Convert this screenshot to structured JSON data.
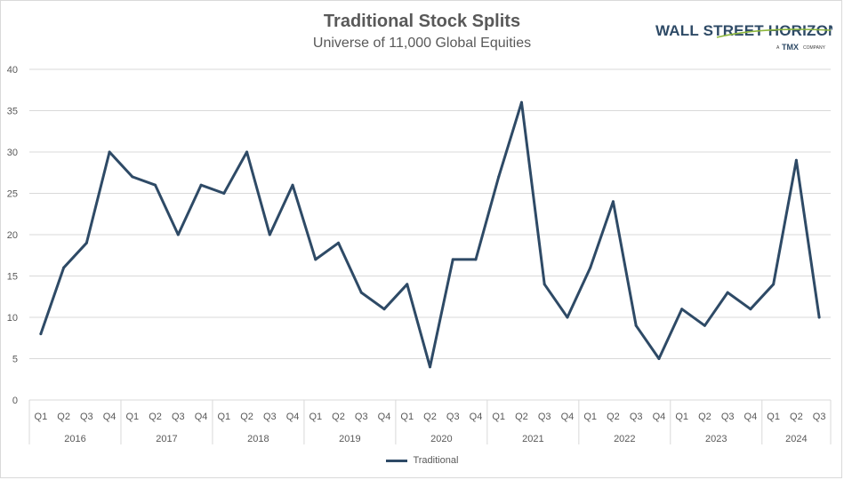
{
  "chart_data": {
    "type": "line",
    "title": "Traditional Stock Splits",
    "subtitle": "Universe of 11,000 Global Equities",
    "years": [
      "2016",
      "2017",
      "2018",
      "2019",
      "2020",
      "2021",
      "2022",
      "2023",
      "2024"
    ],
    "categories": [
      "Q1",
      "Q2",
      "Q3",
      "Q4",
      "Q1",
      "Q2",
      "Q3",
      "Q4",
      "Q1",
      "Q2",
      "Q3",
      "Q4",
      "Q1",
      "Q2",
      "Q3",
      "Q4",
      "Q1",
      "Q2",
      "Q3",
      "Q4",
      "Q1",
      "Q2",
      "Q3",
      "Q4",
      "Q1",
      "Q2",
      "Q3",
      "Q4",
      "Q1",
      "Q2",
      "Q3",
      "Q4",
      "Q1",
      "Q2",
      "Q3"
    ],
    "series": [
      {
        "name": "Traditional",
        "color": "#2e4a66",
        "values": [
          8,
          16,
          19,
          30,
          27,
          26,
          20,
          26,
          25,
          30,
          20,
          26,
          17,
          19,
          13,
          11,
          14,
          4,
          17,
          17,
          27,
          36,
          14,
          10,
          16,
          24,
          9,
          5,
          11,
          9,
          13,
          11,
          14,
          29,
          10
        ]
      }
    ],
    "ylim": [
      0,
      40
    ],
    "yticks": [
      "0",
      "5",
      "10",
      "15",
      "20",
      "25",
      "30",
      "35",
      "40"
    ],
    "grid": true,
    "legend_position": "bottom"
  },
  "logo": {
    "name": "WALL STREET HORIZON",
    "tagline_prefix": "A",
    "tagline_brand": "TMX",
    "tagline_suffix": "COMPANY"
  }
}
